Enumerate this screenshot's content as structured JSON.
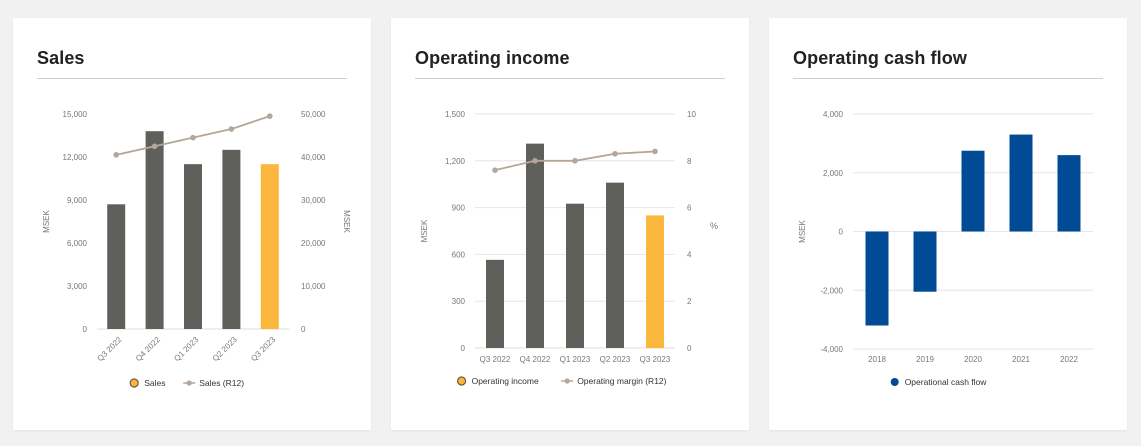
{
  "colors": {
    "bar": "#5f605c",
    "bar_highlight": "#fbb73c",
    "line": "#b3a69a",
    "cashflow_bar": "#014b96",
    "grid": "#e6e6e6",
    "axis_text": "#777777"
  },
  "charts": [
    {
      "title": "Sales",
      "chart_data": {
        "type": "bar+line",
        "categories": [
          "Q3 2022",
          "Q4 2022",
          "Q1 2023",
          "Q2 2023",
          "Q3 2023"
        ],
        "series": [
          {
            "name": "Sales",
            "type": "bar",
            "axis": "left",
            "values": [
              8700,
              13800,
              11500,
              12500,
              11500
            ],
            "highlight_last": true
          },
          {
            "name": "Sales (R12)",
            "type": "line",
            "axis": "right",
            "values": [
              40500,
              42500,
              44500,
              46500,
              49500
            ]
          }
        ],
        "ylabel": "MSEK",
        "ylabel_right": "MSEK",
        "ylim": [
          0,
          15000
        ],
        "yticks": [
          0,
          3000,
          6000,
          9000,
          12000,
          15000
        ],
        "ytick_labels": [
          "0",
          "3,000",
          "6,000",
          "9,000",
          "12,000",
          "15,000"
        ],
        "ylim_right": [
          0,
          50000
        ],
        "yticks_right": [
          0,
          10000,
          20000,
          30000,
          40000,
          50000
        ],
        "ytick_labels_right": [
          "0",
          "10,000",
          "20,000",
          "30,000",
          "40,000",
          "50,000"
        ],
        "rotated_xlabels": true,
        "legend": [
          "Sales",
          "Sales (R12)"
        ],
        "legend_position": "bottom",
        "grid": false
      }
    },
    {
      "title": "Operating income",
      "chart_data": {
        "type": "bar+line",
        "categories": [
          "Q3 2022",
          "Q4 2022",
          "Q1 2023",
          "Q2 2023",
          "Q3 2023"
        ],
        "series": [
          {
            "name": "Operating income",
            "type": "bar",
            "axis": "left",
            "values": [
              565,
              1310,
              925,
              1060,
              850
            ],
            "highlight_last": true
          },
          {
            "name": "Operating margin (R12)",
            "type": "line",
            "axis": "right",
            "values": [
              7.6,
              8.0,
              8.0,
              8.3,
              8.4
            ]
          }
        ],
        "ylabel": "MSEK",
        "ylabel_right": "%",
        "ylim": [
          0,
          1500
        ],
        "yticks": [
          0,
          300,
          600,
          900,
          1200,
          1500
        ],
        "ytick_labels": [
          "0",
          "300",
          "600",
          "900",
          "1,200",
          "1,500"
        ],
        "ylim_right": [
          0,
          10
        ],
        "yticks_right": [
          0,
          2,
          4,
          6,
          8,
          10
        ],
        "ytick_labels_right": [
          "0",
          "2",
          "4",
          "6",
          "8",
          "10"
        ],
        "rotated_xlabels": false,
        "legend": [
          "Operating income",
          "Operating margin (R12)"
        ],
        "legend_position": "bottom",
        "grid": true
      }
    },
    {
      "title": "Operating cash flow",
      "chart_data": {
        "type": "bar",
        "categories": [
          "2018",
          "2019",
          "2020",
          "2021",
          "2022"
        ],
        "series": [
          {
            "name": "Operational cash flow",
            "type": "bar",
            "axis": "left",
            "values": [
              -3200,
              -2050,
              2750,
              3300,
              2600
            ]
          }
        ],
        "ylabel": "MSEK",
        "ylim": [
          -4000,
          4000
        ],
        "yticks": [
          -4000,
          -2000,
          0,
          2000,
          4000
        ],
        "ytick_labels": [
          "-4,000",
          "-2,000",
          "0",
          "2,000",
          "4,000"
        ],
        "rotated_xlabels": false,
        "legend": [
          "Operational cash flow"
        ],
        "legend_position": "bottom",
        "grid": true
      }
    }
  ]
}
